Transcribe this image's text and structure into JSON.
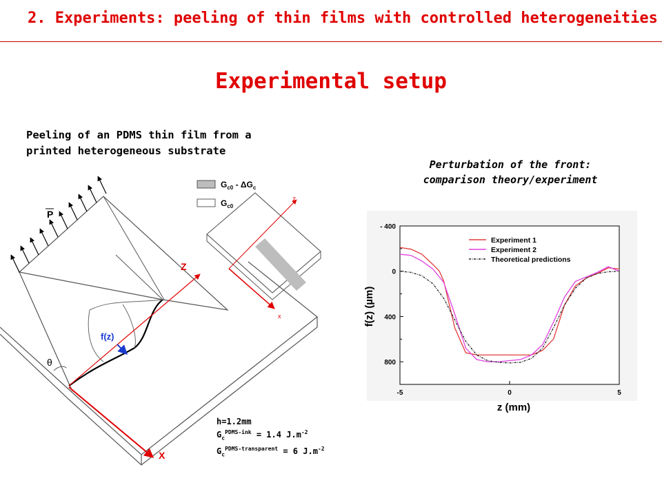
{
  "header": {
    "title": "2. Experiments: peeling of thin films with controlled heterogeneities"
  },
  "slide_title": "Experimental setup",
  "left_caption": {
    "line1": "Peeling of an PDMS thin film from a",
    "line2": "printed heterogeneous substrate"
  },
  "setup_diagram": {
    "force_label": "P",
    "front_label": "f(z)",
    "angle_label": "θ",
    "axis_z": "Z",
    "axis_x": "X",
    "legend_gray_text": "G",
    "legend_gray_sub": "c0",
    "legend_gray_rest": " - ΔG",
    "legend_gray_sub2": "c",
    "legend_white_text": "G",
    "legend_white_sub": "c0",
    "inset_axis_z": "z",
    "inset_axis_x": "x"
  },
  "parameters": {
    "h": "h=1.2mm",
    "g_ink_symbol": "G",
    "g_ink_sub": "c",
    "g_ink_sup": "PDMS-ink",
    "g_ink_value": " = 1.4 J.m",
    "g_ink_exp": "-2",
    "g_tr_symbol": "G",
    "g_tr_sub": "c",
    "g_tr_sup": "PDMS-transparent",
    "g_tr_value": " = 6 J.m",
    "g_tr_exp": "-2"
  },
  "right_caption": {
    "line1": "Perturbation of the front:",
    "line2": "comparison theory/experiment"
  },
  "chart_data": {
    "type": "line",
    "xlabel": "z  (mm)",
    "ylabel": "f(z)  (µm)",
    "xlim": [
      -5,
      5
    ],
    "ylim": [
      -400,
      1000
    ],
    "y_inverted": true,
    "x_ticks": [
      "-5",
      "0",
      "5"
    ],
    "y_ticks": [
      "- 400",
      "0",
      "400",
      "800"
    ],
    "legend_position": "top-right",
    "series": [
      {
        "name": "Experiment 1",
        "color": "#e23a3a",
        "dash": "solid",
        "x": [
          -5,
          -4.5,
          -4,
          -3.5,
          -3.2,
          -3,
          -2.5,
          -2,
          -1.5,
          -1,
          -0.5,
          0,
          0.5,
          1,
          1.5,
          2,
          2.5,
          3,
          3.5,
          4,
          4.5,
          5
        ],
        "y": [
          -210,
          -195,
          -150,
          -60,
          0,
          90,
          500,
          720,
          740,
          740,
          740,
          740,
          740,
          740,
          700,
          600,
          300,
          130,
          60,
          20,
          -30,
          -20
        ]
      },
      {
        "name": "Experiment 2",
        "color": "#e040e0",
        "dash": "solid",
        "x": [
          -5,
          -4.5,
          -4,
          -3.5,
          -3,
          -2.5,
          -2,
          -1.5,
          -1,
          -0.5,
          0,
          0.5,
          1,
          1.5,
          2,
          2.5,
          3,
          3.5,
          4,
          4.5,
          5
        ],
        "y": [
          -150,
          -140,
          -90,
          -20,
          100,
          380,
          680,
          780,
          800,
          800,
          790,
          780,
          740,
          650,
          450,
          230,
          90,
          50,
          10,
          -40,
          0
        ]
      },
      {
        "name": "Theoretical predictions",
        "color": "#222222",
        "dash": "dashdot",
        "x": [
          -5,
          -4.5,
          -4,
          -3.5,
          -3,
          -2.5,
          -2,
          -1.5,
          -1,
          -0.5,
          0,
          0.5,
          1,
          1.5,
          2,
          2.5,
          3,
          3.5,
          4,
          4.5,
          5
        ],
        "y": [
          0,
          10,
          40,
          110,
          240,
          430,
          620,
          740,
          790,
          805,
          810,
          805,
          770,
          680,
          500,
          300,
          150,
          60,
          20,
          5,
          0
        ]
      }
    ]
  }
}
